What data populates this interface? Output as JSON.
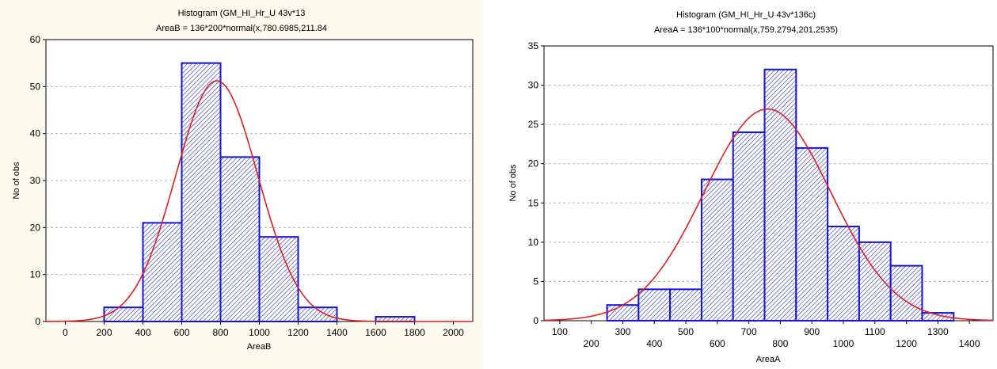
{
  "chart_data": [
    {
      "type": "bar",
      "title": "Histogram (GM_HI_Hr_U 43v*13",
      "subtitle": "AreaB = 136*200*normal(x,780.6985,211.84",
      "xlabel": "AreaB",
      "ylabel": "No of obs",
      "xlim": [
        -100,
        2100
      ],
      "ylim": [
        0,
        60
      ],
      "xticks": [
        0,
        200,
        400,
        600,
        800,
        1000,
        1200,
        1400,
        1600,
        1800,
        2000
      ],
      "yticks": [
        0,
        10,
        20,
        30,
        40,
        50,
        60
      ],
      "bins": [
        {
          "start": 200,
          "end": 400,
          "value": 3
        },
        {
          "start": 400,
          "end": 600,
          "value": 21
        },
        {
          "start": 600,
          "end": 800,
          "value": 55
        },
        {
          "start": 800,
          "end": 1000,
          "value": 35
        },
        {
          "start": 1000,
          "end": 1200,
          "value": 18
        },
        {
          "start": 1200,
          "end": 1400,
          "value": 3
        },
        {
          "start": 1400,
          "end": 1600,
          "value": 0
        },
        {
          "start": 1600,
          "end": 1800,
          "value": 1
        }
      ],
      "normal_curve": {
        "n": 136,
        "bin_width": 200,
        "mean": 780.6985,
        "sd": 211.84
      },
      "grid": true,
      "colors": {
        "bar": "#1414d8",
        "curve": "#e02020"
      }
    },
    {
      "type": "bar",
      "title": "Histogram (GM_HI_Hr_U 43v*136c)",
      "subtitle": "AreaA = 136*100*normal(x,759.2794,201.2535)",
      "xlabel": "AreaA",
      "ylabel": "No of obs",
      "xlim": [
        50,
        1475
      ],
      "ylim": [
        0,
        35
      ],
      "xticks": [
        100,
        200,
        300,
        400,
        500,
        600,
        700,
        800,
        900,
        1000,
        1100,
        1200,
        1300,
        1400
      ],
      "yticks": [
        0,
        5,
        10,
        15,
        20,
        25,
        30,
        35
      ],
      "bins": [
        {
          "start": 250,
          "end": 350,
          "value": 2
        },
        {
          "start": 350,
          "end": 450,
          "value": 4
        },
        {
          "start": 450,
          "end": 550,
          "value": 4
        },
        {
          "start": 550,
          "end": 650,
          "value": 18
        },
        {
          "start": 650,
          "end": 750,
          "value": 24
        },
        {
          "start": 750,
          "end": 850,
          "value": 32
        },
        {
          "start": 850,
          "end": 950,
          "value": 22
        },
        {
          "start": 950,
          "end": 1050,
          "value": 12
        },
        {
          "start": 1050,
          "end": 1150,
          "value": 10
        },
        {
          "start": 1150,
          "end": 1250,
          "value": 7
        },
        {
          "start": 1250,
          "end": 1350,
          "value": 1
        }
      ],
      "normal_curve": {
        "n": 136,
        "bin_width": 100,
        "mean": 759.2794,
        "sd": 201.2535
      },
      "grid": true,
      "colors": {
        "bar": "#1414d8",
        "curve": "#e02020"
      }
    }
  ]
}
